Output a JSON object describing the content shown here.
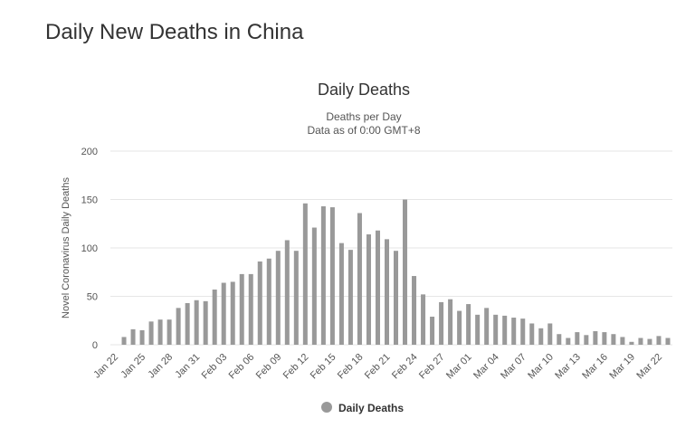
{
  "page": {
    "title": "Daily New Deaths in China"
  },
  "chart_data": {
    "type": "bar",
    "title": "Daily Deaths",
    "subtitle": [
      "Deaths per Day",
      "Data as of 0:00 GMT+8"
    ],
    "ylabel": "Novel Coronavirus Daily Deaths",
    "xlabel": "",
    "ylim": [
      0,
      200
    ],
    "yticks": [
      0,
      50,
      100,
      150,
      200
    ],
    "grid": true,
    "legend": {
      "position": "bottom-center",
      "entries": [
        "Daily Deaths"
      ]
    },
    "colors": {
      "bar": "#999999",
      "legend_marker": "#999999"
    },
    "categories": [
      "Jan 22",
      "Jan 23",
      "Jan 24",
      "Jan 25",
      "Jan 26",
      "Jan 27",
      "Jan 28",
      "Jan 29",
      "Jan 30",
      "Jan 31",
      "Feb 01",
      "Feb 02",
      "Feb 03",
      "Feb 04",
      "Feb 05",
      "Feb 06",
      "Feb 07",
      "Feb 08",
      "Feb 09",
      "Feb 10",
      "Feb 11",
      "Feb 12",
      "Feb 13",
      "Feb 14",
      "Feb 15",
      "Feb 16",
      "Feb 17",
      "Feb 18",
      "Feb 19",
      "Feb 20",
      "Feb 21",
      "Feb 22",
      "Feb 23",
      "Feb 24",
      "Feb 25",
      "Feb 26",
      "Feb 27",
      "Feb 28",
      "Feb 29",
      "Mar 01",
      "Mar 02",
      "Mar 03",
      "Mar 04",
      "Mar 05",
      "Mar 06",
      "Mar 07",
      "Mar 08",
      "Mar 09",
      "Mar 10",
      "Mar 11",
      "Mar 12",
      "Mar 13",
      "Mar 14",
      "Mar 15",
      "Mar 16",
      "Mar 17",
      "Mar 18",
      "Mar 19",
      "Mar 20",
      "Mar 21",
      "Mar 22",
      "Mar 23"
    ],
    "tick_labels": [
      "Jan 22",
      "Jan 25",
      "Jan 28",
      "Jan 31",
      "Feb 03",
      "Feb 06",
      "Feb 09",
      "Feb 12",
      "Feb 15",
      "Feb 18",
      "Feb 21",
      "Feb 24",
      "Feb 27",
      "Mar 01",
      "Mar 04",
      "Mar 07",
      "Mar 10",
      "Mar 13",
      "Mar 16",
      "Mar 19",
      "Mar 22"
    ],
    "series": [
      {
        "name": "Daily Deaths",
        "values": [
          0,
          8,
          16,
          15,
          24,
          26,
          26,
          38,
          43,
          46,
          45,
          57,
          64,
          65,
          73,
          73,
          86,
          89,
          97,
          108,
          97,
          146,
          121,
          143,
          142,
          105,
          98,
          136,
          114,
          118,
          109,
          97,
          150,
          71,
          52,
          29,
          44,
          47,
          35,
          42,
          31,
          38,
          31,
          30,
          28,
          27,
          22,
          17,
          22,
          11,
          7,
          13,
          10,
          14,
          13,
          11,
          8,
          3,
          7,
          6,
          9,
          7
        ]
      }
    ]
  }
}
